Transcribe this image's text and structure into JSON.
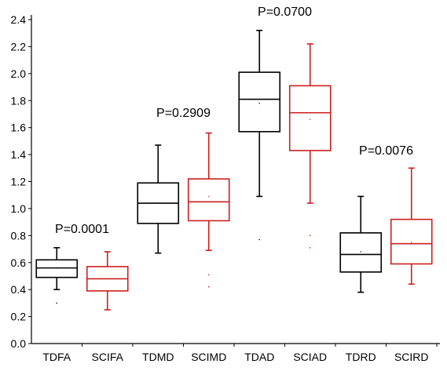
{
  "chart_data": {
    "type": "box",
    "title": "",
    "xlabel": "",
    "ylabel": "",
    "ylim": [
      0.0,
      2.4
    ],
    "ytick_step": 0.2,
    "yticks": [
      "0.0",
      "0.2",
      "0.4",
      "0.6",
      "0.8",
      "1.0",
      "1.2",
      "1.4",
      "1.6",
      "1.8",
      "2.0",
      "2.2",
      "2.4"
    ],
    "grid": false,
    "legend": "none",
    "colors": {
      "black": "#000000",
      "red": "#cc1f1f"
    },
    "categories": [
      "TDFA",
      "SCIFA",
      "TDMD",
      "SCIMD",
      "TDAD",
      "SCIAD",
      "TDRD",
      "SCIRD"
    ],
    "boxes": [
      {
        "category": "TDFA",
        "color": "black",
        "whisker_low": 0.4,
        "q1": 0.49,
        "median": 0.56,
        "q3": 0.62,
        "whisker_high": 0.71,
        "mean": 0.56,
        "outliers": [
          0.3
        ]
      },
      {
        "category": "SCIFA",
        "color": "red",
        "whisker_low": 0.25,
        "q1": 0.39,
        "median": 0.48,
        "q3": 0.57,
        "whisker_high": 0.68,
        "mean": 0.48,
        "outliers": []
      },
      {
        "category": "TDMD",
        "color": "black",
        "whisker_low": 0.67,
        "q1": 0.89,
        "median": 1.04,
        "q3": 1.19,
        "whisker_high": 1.47,
        "mean": 1.04,
        "outliers": []
      },
      {
        "category": "SCIMD",
        "color": "red",
        "whisker_low": 0.69,
        "q1": 0.91,
        "median": 1.05,
        "q3": 1.22,
        "whisker_high": 1.56,
        "mean": 1.09,
        "outliers": [
          0.51,
          0.42
        ]
      },
      {
        "category": "TDAD",
        "color": "black",
        "whisker_low": 1.09,
        "q1": 1.57,
        "median": 1.81,
        "q3": 2.01,
        "whisker_high": 2.32,
        "mean": 1.78,
        "outliers": [
          0.77
        ]
      },
      {
        "category": "SCIAD",
        "color": "red",
        "whisker_low": 1.04,
        "q1": 1.43,
        "median": 1.71,
        "q3": 1.91,
        "whisker_high": 2.22,
        "mean": 1.66,
        "outliers": [
          0.8,
          0.71
        ]
      },
      {
        "category": "TDRD",
        "color": "black",
        "whisker_low": 0.38,
        "q1": 0.53,
        "median": 0.66,
        "q3": 0.82,
        "whisker_high": 1.09,
        "mean": 0.68,
        "outliers": []
      },
      {
        "category": "SCIRD",
        "color": "red",
        "whisker_low": 0.44,
        "q1": 0.59,
        "median": 0.74,
        "q3": 0.92,
        "whisker_high": 1.3,
        "mean": 0.75,
        "outliers": []
      }
    ],
    "annotations": [
      {
        "text": "P=0.0001",
        "pair": [
          "TDFA",
          "SCIFA"
        ],
        "y": 0.82
      },
      {
        "text": "P=0.2909",
        "pair": [
          "TDMD",
          "SCIMD"
        ],
        "y": 1.68
      },
      {
        "text": "P=0.0700",
        "pair": [
          "TDAD",
          "SCIAD"
        ],
        "y": 2.43
      },
      {
        "text": "P=0.0076",
        "pair": [
          "TDRD",
          "SCIRD"
        ],
        "y": 1.4
      }
    ]
  }
}
